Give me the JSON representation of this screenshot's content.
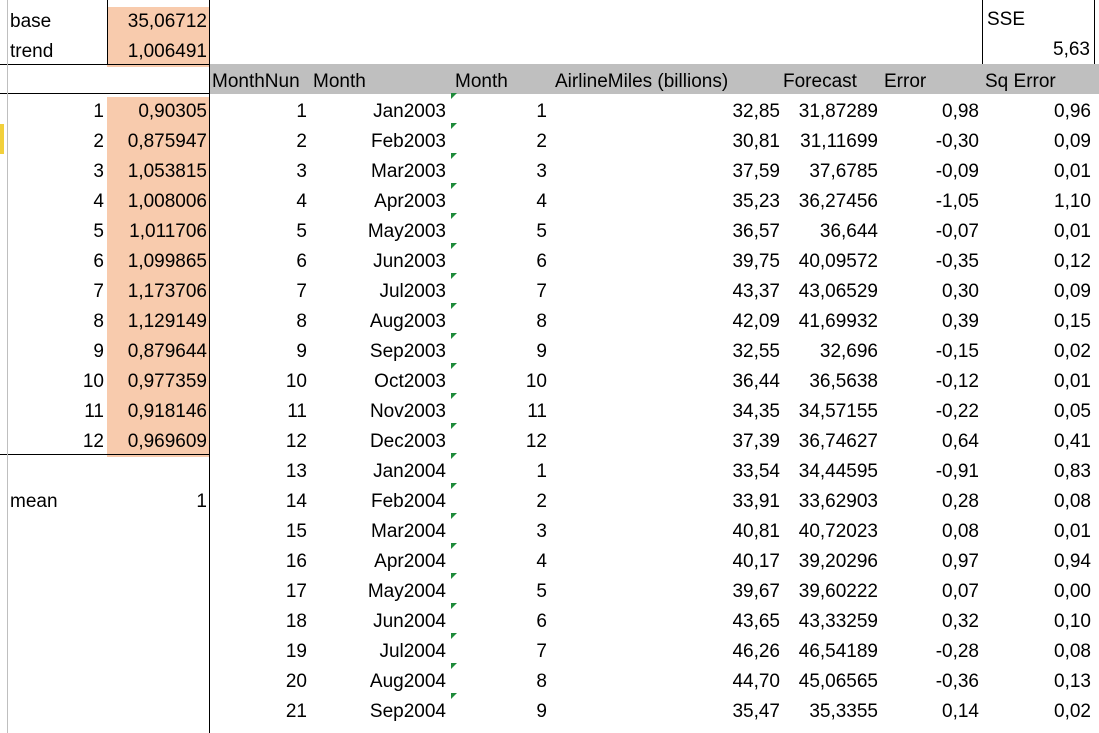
{
  "params": {
    "base_label": "base",
    "base_value": "35,06712",
    "trend_label": "trend",
    "trend_value": "1,006491",
    "mean_label": "mean",
    "mean_value": "1"
  },
  "seasonal": [
    {
      "idx": "1",
      "val": "0,90305"
    },
    {
      "idx": "2",
      "val": "0,875947"
    },
    {
      "idx": "3",
      "val": "1,053815"
    },
    {
      "idx": "4",
      "val": "1,008006"
    },
    {
      "idx": "5",
      "val": "1,011706"
    },
    {
      "idx": "6",
      "val": "1,099865"
    },
    {
      "idx": "7",
      "val": "1,173706"
    },
    {
      "idx": "8",
      "val": "1,129149"
    },
    {
      "idx": "9",
      "val": "0,879644"
    },
    {
      "idx": "10",
      "val": "0,977359"
    },
    {
      "idx": "11",
      "val": "0,918146"
    },
    {
      "idx": "12",
      "val": "0,969609"
    }
  ],
  "sse": {
    "label": "SSE",
    "value": "5,63"
  },
  "headers": {
    "monthnum": "MonthNun",
    "month_name": "Month",
    "month": "Month",
    "miles": "AirlineMiles (billions)",
    "forecast": "Forecast",
    "error": "Error",
    "sqerror": "Sq Error"
  },
  "rows": [
    {
      "n": "1",
      "name": "Jan2003",
      "m": "1",
      "miles": "32,85",
      "fc": "31,87289",
      "err": "0,98",
      "sq": "0,96"
    },
    {
      "n": "2",
      "name": "Feb2003",
      "m": "2",
      "miles": "30,81",
      "fc": "31,11699",
      "err": "-0,30",
      "sq": "0,09"
    },
    {
      "n": "3",
      "name": "Mar2003",
      "m": "3",
      "miles": "37,59",
      "fc": "37,6785",
      "err": "-0,09",
      "sq": "0,01"
    },
    {
      "n": "4",
      "name": "Apr2003",
      "m": "4",
      "miles": "35,23",
      "fc": "36,27456",
      "err": "-1,05",
      "sq": "1,10"
    },
    {
      "n": "5",
      "name": "May2003",
      "m": "5",
      "miles": "36,57",
      "fc": "36,644",
      "err": "-0,07",
      "sq": "0,01"
    },
    {
      "n": "6",
      "name": "Jun2003",
      "m": "6",
      "miles": "39,75",
      "fc": "40,09572",
      "err": "-0,35",
      "sq": "0,12"
    },
    {
      "n": "7",
      "name": "Jul2003",
      "m": "7",
      "miles": "43,37",
      "fc": "43,06529",
      "err": "0,30",
      "sq": "0,09"
    },
    {
      "n": "8",
      "name": "Aug2003",
      "m": "8",
      "miles": "42,09",
      "fc": "41,69932",
      "err": "0,39",
      "sq": "0,15"
    },
    {
      "n": "9",
      "name": "Sep2003",
      "m": "9",
      "miles": "32,55",
      "fc": "32,696",
      "err": "-0,15",
      "sq": "0,02"
    },
    {
      "n": "10",
      "name": "Oct2003",
      "m": "10",
      "miles": "36,44",
      "fc": "36,5638",
      "err": "-0,12",
      "sq": "0,01"
    },
    {
      "n": "11",
      "name": "Nov2003",
      "m": "11",
      "miles": "34,35",
      "fc": "34,57155",
      "err": "-0,22",
      "sq": "0,05"
    },
    {
      "n": "12",
      "name": "Dec2003",
      "m": "12",
      "miles": "37,39",
      "fc": "36,74627",
      "err": "0,64",
      "sq": "0,41"
    },
    {
      "n": "13",
      "name": "Jan2004",
      "m": "1",
      "miles": "33,54",
      "fc": "34,44595",
      "err": "-0,91",
      "sq": "0,83"
    },
    {
      "n": "14",
      "name": "Feb2004",
      "m": "2",
      "miles": "33,91",
      "fc": "33,62903",
      "err": "0,28",
      "sq": "0,08"
    },
    {
      "n": "15",
      "name": "Mar2004",
      "m": "3",
      "miles": "40,81",
      "fc": "40,72023",
      "err": "0,08",
      "sq": "0,01"
    },
    {
      "n": "16",
      "name": "Apr2004",
      "m": "4",
      "miles": "40,17",
      "fc": "39,20296",
      "err": "0,97",
      "sq": "0,94"
    },
    {
      "n": "17",
      "name": "May2004",
      "m": "5",
      "miles": "39,67",
      "fc": "39,60222",
      "err": "0,07",
      "sq": "0,00"
    },
    {
      "n": "18",
      "name": "Jun2004",
      "m": "6",
      "miles": "43,65",
      "fc": "43,33259",
      "err": "0,32",
      "sq": "0,10"
    },
    {
      "n": "19",
      "name": "Jul2004",
      "m": "7",
      "miles": "46,26",
      "fc": "46,54189",
      "err": "-0,28",
      "sq": "0,08"
    },
    {
      "n": "20",
      "name": "Aug2004",
      "m": "8",
      "miles": "44,70",
      "fc": "45,06565",
      "err": "-0,36",
      "sq": "0,13"
    },
    {
      "n": "21",
      "name": "Sep2004",
      "m": "9",
      "miles": "35,47",
      "fc": "35,3355",
      "err": "0,14",
      "sq": "0,02"
    }
  ]
}
